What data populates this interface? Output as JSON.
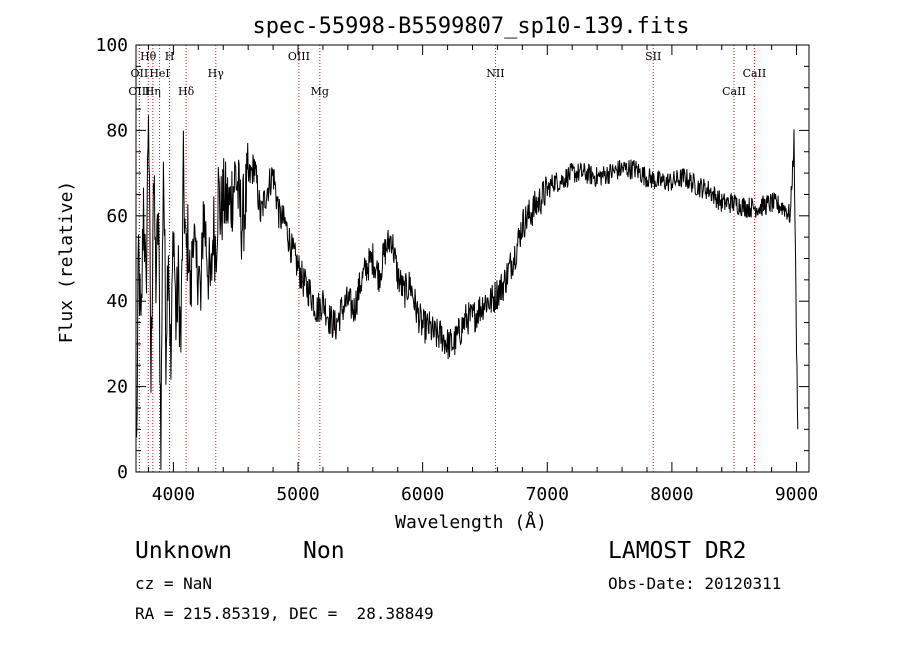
{
  "chart_data": {
    "type": "line",
    "title": "spec-55998-B5599807_sp10-139.fits",
    "xlabel": "Wavelength (Å)",
    "ylabel": "Flux (relative)",
    "xlim": [
      3700,
      9100
    ],
    "ylim": [
      0,
      100
    ],
    "x_ticks": [
      4000,
      5000,
      6000,
      7000,
      8000,
      9000
    ],
    "y_ticks": [
      0,
      20,
      40,
      60,
      80,
      100
    ],
    "line_color": "#000000",
    "marker_color": "#b22222",
    "lines": [
      {
        "name": "Hθ",
        "x": 3798,
        "row": 1
      },
      {
        "name": "H",
        "x": 3969,
        "row": 1
      },
      {
        "name": "OII",
        "x": 3727,
        "row": 2
      },
      {
        "name": "HeI",
        "x": 3889,
        "row": 2
      },
      {
        "name": "OIII",
        "x": 3727,
        "row": 3
      },
      {
        "name": "Hη",
        "x": 3835,
        "row": 3
      },
      {
        "name": "Hδ",
        "x": 4102,
        "row": 3
      },
      {
        "name": "Hγ",
        "x": 4340,
        "row": 2
      },
      {
        "name": "OIII",
        "x": 5007,
        "row": 1
      },
      {
        "name": "Mg",
        "x": 5175,
        "row": 3
      },
      {
        "name": "NII",
        "x": 6584,
        "row": 2
      },
      {
        "name": "SII",
        "x": 7850,
        "row": 1
      },
      {
        "name": "CaII",
        "x": 8662,
        "row": 2
      },
      {
        "name": "CaII",
        "x": 8498,
        "row": 3
      }
    ],
    "spectrum": {
      "x": [
        3705,
        3720,
        3740,
        3760,
        3780,
        3800,
        3820,
        3840,
        3860,
        3880,
        3900,
        3920,
        3940,
        3960,
        3980,
        4000,
        4020,
        4040,
        4060,
        4080,
        4100,
        4120,
        4140,
        4160,
        4180,
        4200,
        4220,
        4240,
        4260,
        4280,
        4300,
        4320,
        4340,
        4360,
        4380,
        4400,
        4450,
        4500,
        4550,
        4600,
        4650,
        4700,
        4750,
        4800,
        4850,
        4900,
        4950,
        5000,
        5050,
        5100,
        5150,
        5200,
        5250,
        5300,
        5350,
        5400,
        5450,
        5500,
        5550,
        5600,
        5650,
        5700,
        5750,
        5800,
        5850,
        5900,
        5950,
        6000,
        6050,
        6100,
        6150,
        6200,
        6250,
        6300,
        6350,
        6400,
        6450,
        6500,
        6550,
        6600,
        6650,
        6700,
        6750,
        6800,
        6850,
        6900,
        6950,
        7000,
        7050,
        7100,
        7150,
        7200,
        7300,
        7400,
        7500,
        7600,
        7700,
        7800,
        7900,
        8000,
        8100,
        8200,
        8300,
        8400,
        8500,
        8600,
        8700,
        8800,
        8900,
        8950,
        8980,
        9000,
        9010
      ],
      "y": [
        5,
        52,
        30,
        65,
        40,
        88,
        20,
        70,
        45,
        60,
        8,
        75,
        30,
        55,
        22,
        60,
        35,
        45,
        30,
        70,
        50,
        55,
        40,
        60,
        45,
        50,
        38,
        62,
        55,
        48,
        42,
        58,
        52,
        66,
        60,
        64,
        62,
        70,
        58,
        68,
        72,
        60,
        66,
        70,
        60,
        58,
        52,
        48,
        44,
        42,
        38,
        40,
        36,
        34,
        38,
        40,
        38,
        44,
        48,
        50,
        46,
        52,
        55,
        46,
        42,
        44,
        38,
        34,
        34,
        32,
        32,
        30,
        30,
        33,
        36,
        36,
        38,
        40,
        40,
        42,
        44,
        48,
        52,
        58,
        60,
        62,
        64,
        66,
        68,
        68,
        69,
        70,
        70,
        69,
        70,
        71,
        71,
        69,
        68,
        68,
        69,
        67,
        66,
        63,
        63,
        62,
        62,
        63,
        62,
        60,
        78,
        30,
        10
      ]
    }
  },
  "info": {
    "object_type": "Unknown",
    "object_subtype": "Non",
    "survey": "LAMOST DR2",
    "cz": "cz = NaN",
    "obs_date": "Obs-Date: 20120311",
    "coords": "RA = 215.85319, DEC =  28.38849"
  }
}
